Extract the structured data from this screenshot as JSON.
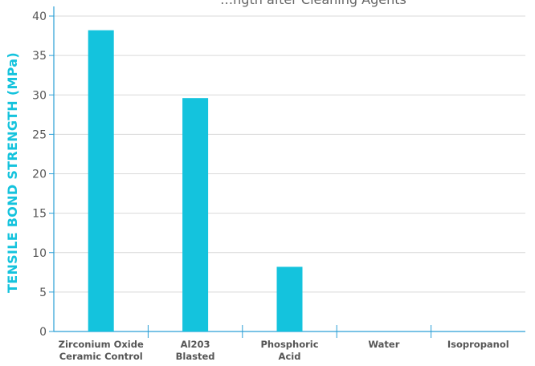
{
  "chart_data": {
    "type": "bar",
    "title": "…ngth after Cleaning Agents",
    "ylabel": "TENSILE BOND STRENGTH (MPa)",
    "xlabel": "",
    "categories": [
      [
        "Zirconium Oxide",
        "Ceramic Control"
      ],
      [
        "Al203",
        "Blasted"
      ],
      [
        "Phosphoric",
        "Acid"
      ],
      [
        "Water"
      ],
      [
        "Isopropanol"
      ]
    ],
    "values": [
      38.2,
      29.6,
      8.2,
      0,
      0
    ],
    "ylim": [
      0,
      40
    ],
    "yticks": [
      0,
      5,
      10,
      15,
      20,
      25,
      30,
      35,
      40
    ],
    "grid": true,
    "legend": "none"
  },
  "colors": {
    "bar": "#14c3dd",
    "axis": "#2a9fd6",
    "grid": "#d9d9d9",
    "ylabel": "#14c3dd"
  }
}
